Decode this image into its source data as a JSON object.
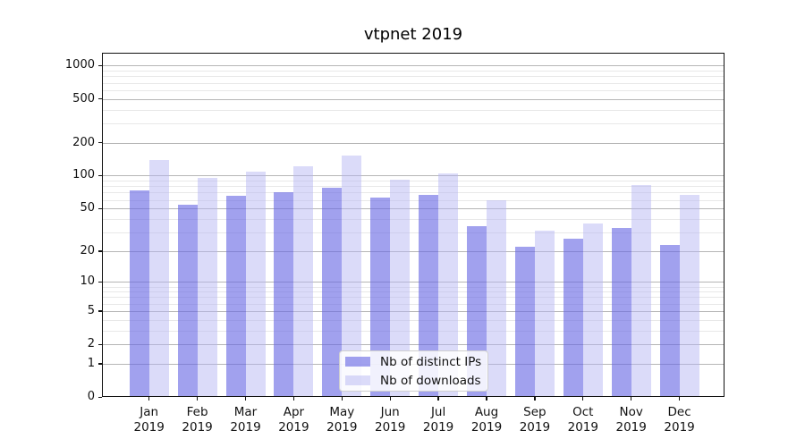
{
  "chart_data": {
    "type": "bar",
    "title": "vtpnet 2019",
    "categories": [
      "Jan 2019",
      "Feb 2019",
      "Mar 2019",
      "Apr 2019",
      "May 2019",
      "Jun 2019",
      "Jul 2019",
      "Aug 2019",
      "Sep 2019",
      "Oct 2019",
      "Nov 2019",
      "Dec 2019"
    ],
    "series": [
      {
        "name": "Nb of distinct IPs",
        "color": "rgba(103,103,228,0.62)",
        "values": [
          73,
          54,
          65,
          71,
          78,
          63,
          66,
          34,
          22,
          26,
          33,
          23
        ]
      },
      {
        "name": "Nb of downloads",
        "color": "rgba(180,180,242,0.48)",
        "values": [
          140,
          95,
          108,
          122,
          154,
          92,
          105,
          60,
          31,
          36,
          82,
          66
        ]
      }
    ],
    "y_axis": {
      "scale": "log1p",
      "ticks": [
        0,
        1,
        2,
        5,
        10,
        20,
        50,
        100,
        200,
        500,
        1000
      ],
      "minor_ticks": [
        3,
        4,
        6,
        7,
        8,
        9,
        30,
        40,
        60,
        70,
        80,
        90,
        300,
        400,
        600,
        700,
        800,
        900
      ],
      "max": 1310
    },
    "xlabel": "",
    "ylabel": "",
    "grid": {
      "on": true,
      "major_color": "#b6b6b6",
      "minor_color": "#e8e8e8"
    },
    "legend": {
      "position": "lower center",
      "border_color": "#cfcfcf"
    }
  }
}
